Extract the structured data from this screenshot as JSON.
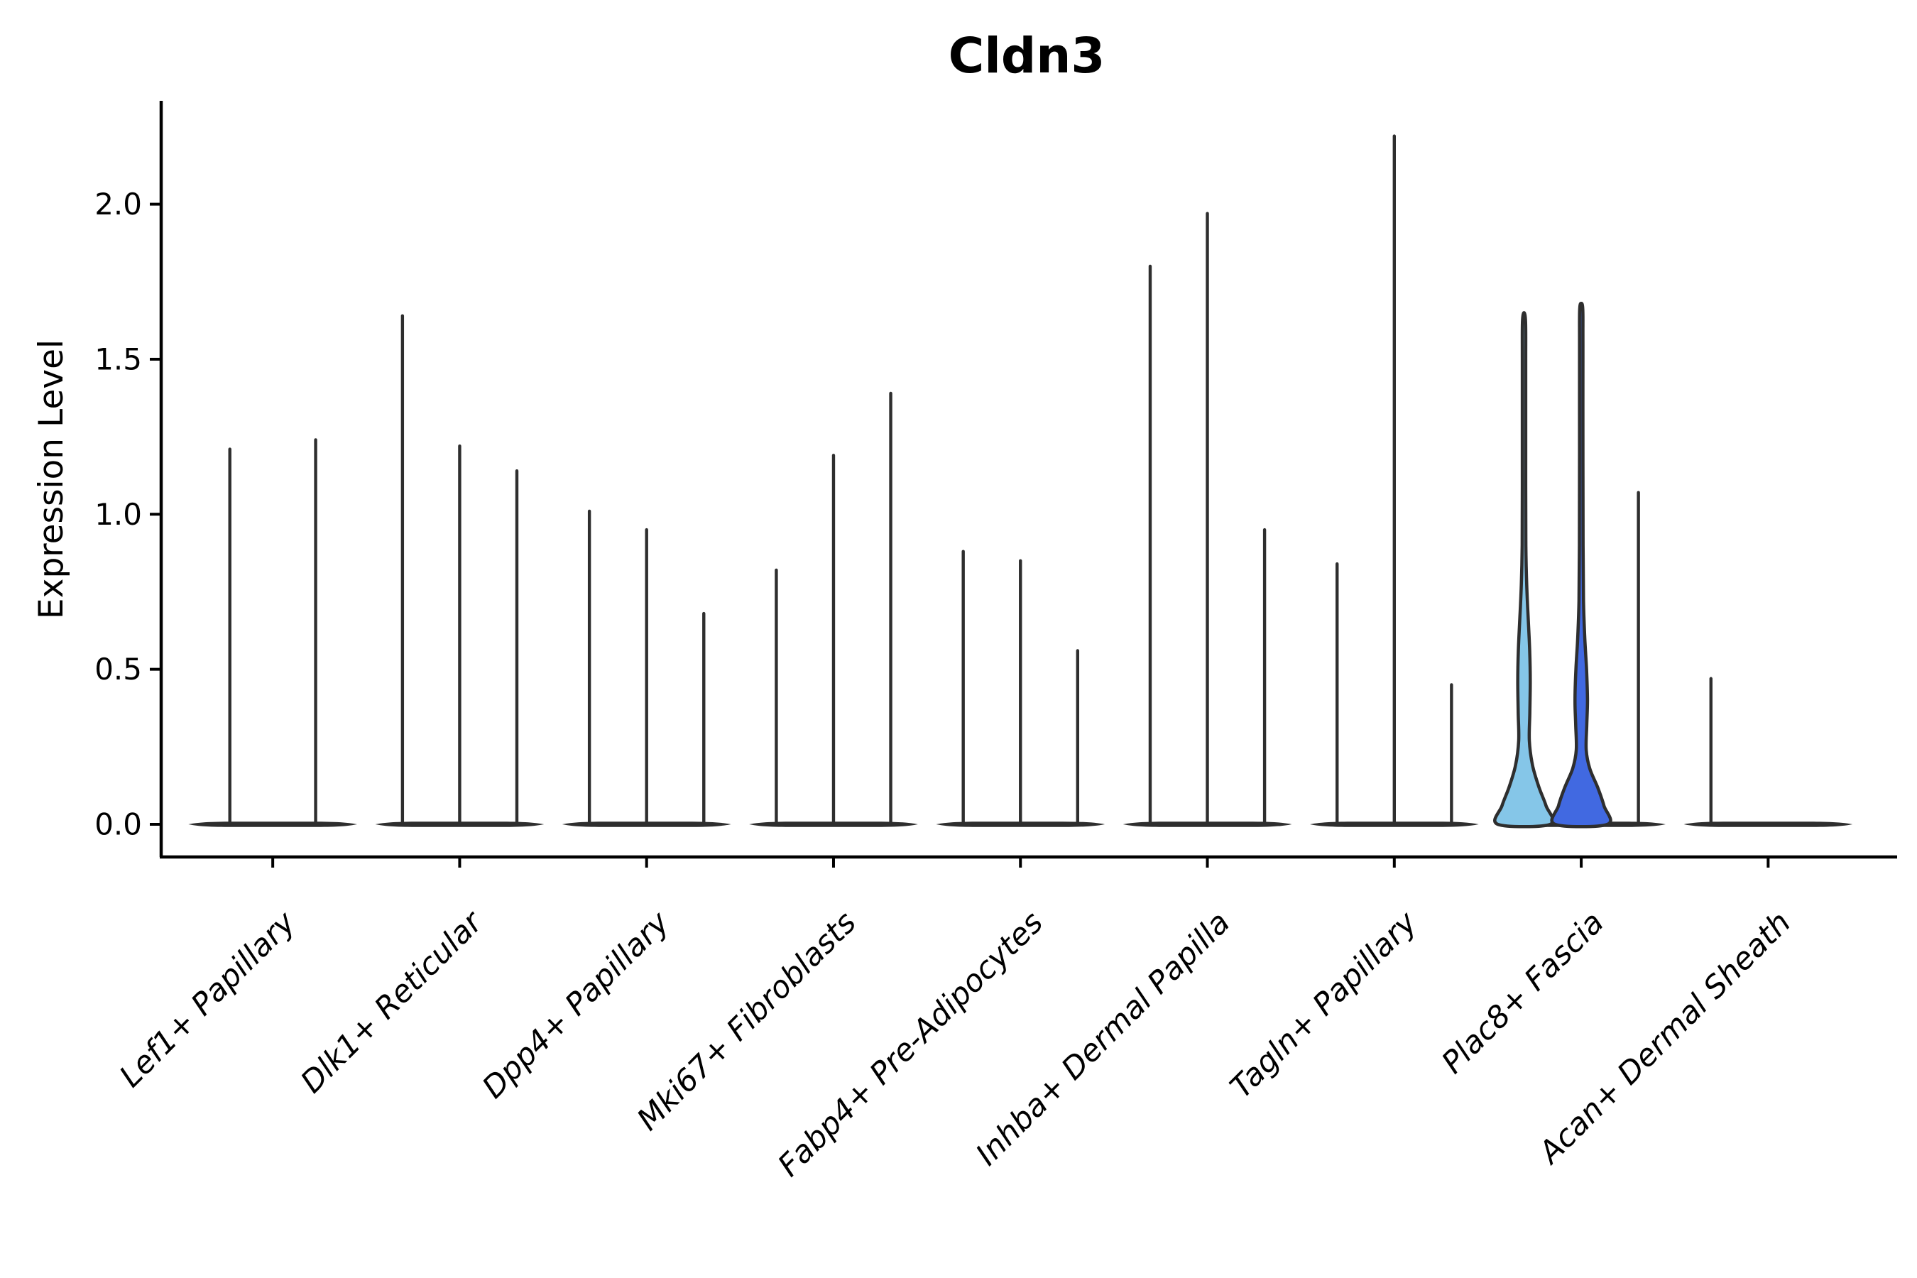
{
  "title": "Cldn3",
  "ylabel": "Expression Level",
  "chart_data": {
    "type": "violin",
    "title": "Cldn3",
    "ylabel": "Expression Level",
    "xlabel": "",
    "ylim": [
      -0.105,
      2.333
    ],
    "yticks": [
      0.0,
      0.5,
      1.0,
      1.5,
      2.0
    ],
    "ytick_labels": [
      "0.0",
      "0.5",
      "1.0",
      "1.5",
      "2.0"
    ],
    "grid": "off",
    "legend": "none",
    "note": "Stacked-violin style plot; each cluster shows 2-3 sample violins. Most violins are collapsed at 0 with a thin spike to the max expression value. Only the first two violins of Plac8+ Fascia have visible filled density bodies.",
    "colors": {
      "light_blue": "#85C6E8",
      "royal_blue": "#4169E1",
      "line": "#2E2E2E",
      "axis": "#000000"
    },
    "groups": [
      {
        "label": "Lef1+ Papillary",
        "violins": [
          {
            "max": 1.21
          },
          {
            "max": 1.24
          }
        ]
      },
      {
        "label": "Dlk1+ Reticular",
        "violins": [
          {
            "max": 1.64
          },
          {
            "max": 1.22
          },
          {
            "max": 1.14
          }
        ]
      },
      {
        "label": "Dpp4+ Papillary",
        "violins": [
          {
            "max": 1.01
          },
          {
            "max": 0.95
          },
          {
            "max": 0.68
          }
        ]
      },
      {
        "label": "Mki67+ Fibroblasts",
        "violins": [
          {
            "max": 0.82
          },
          {
            "max": 1.19
          },
          {
            "max": 1.39
          }
        ]
      },
      {
        "label": "Fabp4+ Pre-Adipocytes",
        "violins": [
          {
            "max": 0.88
          },
          {
            "max": 0.85
          },
          {
            "max": 0.56
          }
        ]
      },
      {
        "label": "Inhba+ Dermal Papilla",
        "violins": [
          {
            "max": 1.8
          },
          {
            "max": 1.97
          },
          {
            "max": 0.95
          }
        ]
      },
      {
        "label": "Tagln+ Papillary",
        "violins": [
          {
            "max": 0.84
          },
          {
            "max": 2.22
          },
          {
            "max": 0.45
          }
        ]
      },
      {
        "label": "Plac8+ Fascia",
        "violins": [
          {
            "max": 1.65,
            "fill": "#85C6E8",
            "profile": [
              [
                0,
                37
              ],
              [
                0.06,
                31
              ],
              [
                0.12,
                21
              ],
              [
                0.19,
                12
              ],
              [
                0.27,
                7.5
              ],
              [
                0.36,
                8.2
              ],
              [
                0.46,
                8.8
              ],
              [
                0.56,
                8.0
              ],
              [
                0.66,
                6.0
              ],
              [
                0.76,
                4.0
              ],
              [
                0.9,
                2.6
              ],
              [
                1.2,
                2.4
              ],
              [
                1.5,
                2.4
              ],
              [
                1.62,
                2.2
              ],
              [
                1.65,
                0
              ]
            ]
          },
          {
            "max": 1.68,
            "fill": "#4169E1",
            "profile": [
              [
                0,
                37
              ],
              [
                0.06,
                32
              ],
              [
                0.12,
                23
              ],
              [
                0.18,
                12
              ],
              [
                0.24,
                7.0
              ],
              [
                0.32,
                7.8
              ],
              [
                0.4,
                8.8
              ],
              [
                0.5,
                7.5
              ],
              [
                0.6,
                5.0
              ],
              [
                0.72,
                3.2
              ],
              [
                0.9,
                2.6
              ],
              [
                1.2,
                2.4
              ],
              [
                1.55,
                2.4
              ],
              [
                1.66,
                2.2
              ],
              [
                1.68,
                0
              ]
            ]
          },
          {
            "max": 1.07
          }
        ]
      },
      {
        "label": "Acan+ Dermal Sheath",
        "violins": [
          {
            "max": 0.47
          },
          {
            "max": 0
          },
          {
            "max": 0
          }
        ]
      }
    ]
  }
}
